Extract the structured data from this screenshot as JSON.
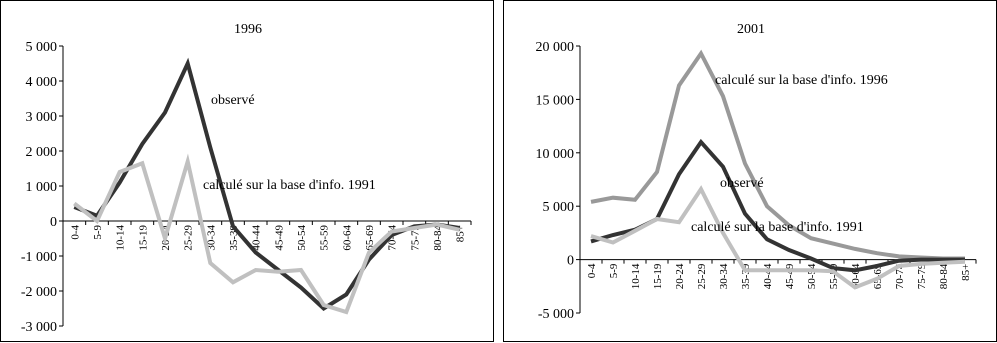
{
  "chart_data": [
    {
      "type": "line",
      "title": "1996",
      "categories": [
        "0-4",
        "5-9",
        "10-14",
        "15-19",
        "20-24",
        "25-29",
        "30-34",
        "35-39",
        "40-44",
        "45-49",
        "50-54",
        "55-59",
        "60-64",
        "65-69",
        "70-74",
        "75-79",
        "80-84",
        "85+"
      ],
      "ylim": [
        -3000,
        5000
      ],
      "yticks": [
        5000,
        4000,
        3000,
        2000,
        1000,
        0,
        -1000,
        -2000,
        -3000
      ],
      "ytick_labels": [
        "5 000",
        "4 000",
        "3 000",
        "2 000",
        "1 000",
        "0",
        "-1 000",
        "-2 000",
        "-3 000"
      ],
      "series": [
        {
          "name": "observé",
          "color": "#333333",
          "values": [
            400,
            150,
            1100,
            2200,
            3100,
            4500,
            2100,
            -150,
            -900,
            -1400,
            -1900,
            -2500,
            -2100,
            -1100,
            -400,
            -150,
            -100,
            -200
          ]
        },
        {
          "name": "calculé sur la base d'info. 1991",
          "color": "#c0c0c0",
          "values": [
            500,
            0,
            1400,
            1650,
            -500,
            1700,
            -1200,
            -1750,
            -1400,
            -1450,
            -1400,
            -2400,
            -2600,
            -900,
            -300,
            -200,
            -100,
            -250
          ]
        }
      ],
      "grid": false
    },
    {
      "type": "line",
      "title": "2001",
      "categories": [
        "0-4",
        "5-9",
        "10-14",
        "15-19",
        "20-24",
        "25-29",
        "30-34",
        "35-39",
        "40-44",
        "45-49",
        "50-54",
        "55-59",
        "60-64",
        "65-69",
        "70-74",
        "75-79",
        "80-84",
        "85+"
      ],
      "ylim": [
        -5000,
        20000
      ],
      "yticks": [
        20000,
        15000,
        10000,
        5000,
        0,
        -5000
      ],
      "ytick_labels": [
        "20 000",
        "15 000",
        "10 000",
        "5 000",
        "0",
        "-5 000"
      ],
      "series": [
        {
          "name": "calculé sur la base d'info. 1996",
          "color": "#999999",
          "values": [
            5400,
            5800,
            5600,
            8200,
            16300,
            19300,
            15300,
            9000,
            5000,
            3200,
            2000,
            1500,
            1000,
            600,
            300,
            200,
            100,
            100
          ]
        },
        {
          "name": "observé",
          "color": "#333333",
          "values": [
            1700,
            2300,
            2800,
            3800,
            8000,
            11000,
            8700,
            4300,
            1900,
            900,
            100,
            -800,
            -1000,
            -600,
            -100,
            0,
            0,
            0
          ]
        },
        {
          "name": "calculé sur la base d'info. 1991",
          "color": "#c0c0c0",
          "values": [
            2200,
            1600,
            2700,
            3800,
            3500,
            6600,
            2500,
            -1000,
            -1000,
            -1000,
            -1000,
            -1100,
            -2600,
            -1800,
            -600,
            -400,
            -300,
            -200
          ]
        }
      ],
      "grid": false
    }
  ]
}
